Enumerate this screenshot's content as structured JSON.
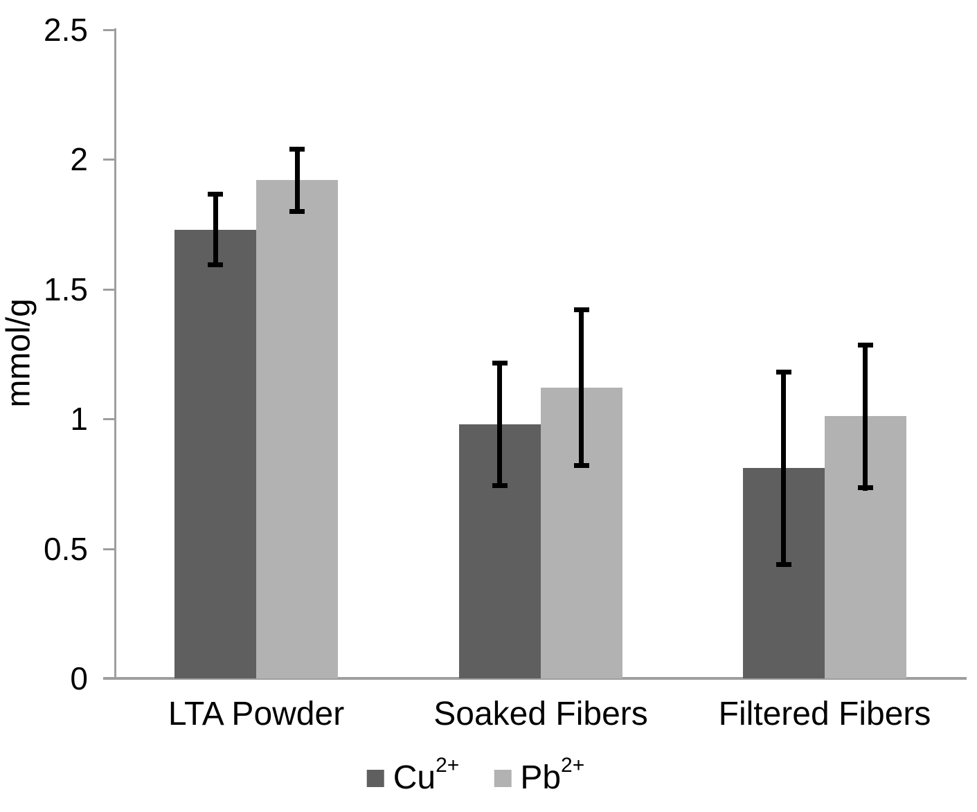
{
  "chart_data": {
    "type": "bar",
    "title": "",
    "ylabel": "mmol/g",
    "xlabel": "",
    "categories": [
      "LTA Powder",
      "Soaked Fibers",
      "Filtered Fibers"
    ],
    "series": [
      {
        "name": "Cu",
        "superscript": "2+",
        "color": "#5f5f5f",
        "values": [
          1.73,
          0.98,
          0.81
        ],
        "errors": [
          0.145,
          0.245,
          0.38
        ]
      },
      {
        "name": "Pb",
        "superscript": "2+",
        "color": "#b2b2b2",
        "values": [
          1.92,
          1.12,
          1.01
        ],
        "errors": [
          0.13,
          0.31,
          0.285
        ]
      }
    ],
    "y_ticks": [
      0,
      0.5,
      1,
      1.5,
      2,
      2.5
    ],
    "ylim": [
      0,
      2.5
    ],
    "grid": false,
    "legend_position": "bottom",
    "error_bars": true,
    "error_bar_color": "#000000",
    "axis_color": "#9e9e9e",
    "text_color": "#000000",
    "background_color": "#ffffff"
  }
}
